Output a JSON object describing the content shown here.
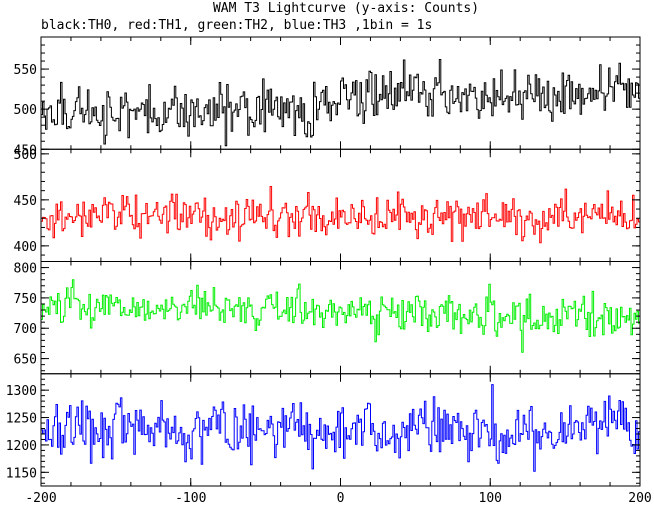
{
  "header": {
    "title": "WAM T3 Lightcurve (y-axis: Counts)",
    "subtitle": "black:TH0, red:TH1, green:TH2, blue:TH3 ,1bin = 1s"
  },
  "chart_data": {
    "type": "line",
    "title": "WAM T3 Lightcurve (y-axis: Counts)",
    "subtitle": "black:TH0, red:TH1, green:TH2, blue:TH3 ,1bin = 1s",
    "xlim": [
      -200,
      200
    ],
    "x_ticks": [
      -200,
      -100,
      0,
      100,
      200
    ],
    "x_tick_labels": [
      "-200",
      "-100",
      "0",
      "100",
      "200"
    ],
    "bin_size": 1,
    "panels": [
      {
        "name": "TH0",
        "color": "#000000",
        "ylim": [
          450,
          590
        ],
        "y_ticks": [
          450,
          500,
          550
        ],
        "y_tick_labels": [
          "450",
          "500",
          "550"
        ],
        "mean": 500,
        "std": 22,
        "shape": [
          [
            -200,
            498
          ],
          [
            -100,
            496
          ],
          [
            -20,
            500
          ],
          [
            0,
            515
          ],
          [
            40,
            518
          ],
          [
            80,
            520
          ],
          [
            140,
            520
          ],
          [
            200,
            515
          ]
        ]
      },
      {
        "name": "TH1",
        "color": "#ff0000",
        "ylim": [
          383,
          505
        ],
        "y_ticks": [
          400,
          450,
          500
        ],
        "y_tick_labels": [
          "400",
          "450",
          "500"
        ],
        "mean": 433,
        "std": 16,
        "shape": [
          [
            -200,
            433
          ],
          [
            0,
            433
          ],
          [
            200,
            433
          ]
        ]
      },
      {
        "name": "TH2",
        "color": "#00ee00",
        "ylim": [
          625,
          810
        ],
        "y_ticks": [
          650,
          700,
          750,
          800
        ],
        "y_tick_labels": [
          "650",
          "700",
          "750",
          "800"
        ],
        "mean": 730,
        "std": 22,
        "shape": [
          [
            -200,
            735
          ],
          [
            -100,
            733
          ],
          [
            0,
            728
          ],
          [
            100,
            723
          ],
          [
            200,
            718
          ]
        ]
      },
      {
        "name": "TH3",
        "color": "#0000ff",
        "ylim": [
          1125,
          1330
        ],
        "y_ticks": [
          1150,
          1200,
          1250,
          1300
        ],
        "y_tick_labels": [
          "1150",
          "1200",
          "1250",
          "1300"
        ],
        "mean": 1225,
        "std": 36,
        "shape": [
          [
            -200,
            1225
          ],
          [
            0,
            1225
          ],
          [
            200,
            1225
          ]
        ]
      }
    ]
  }
}
